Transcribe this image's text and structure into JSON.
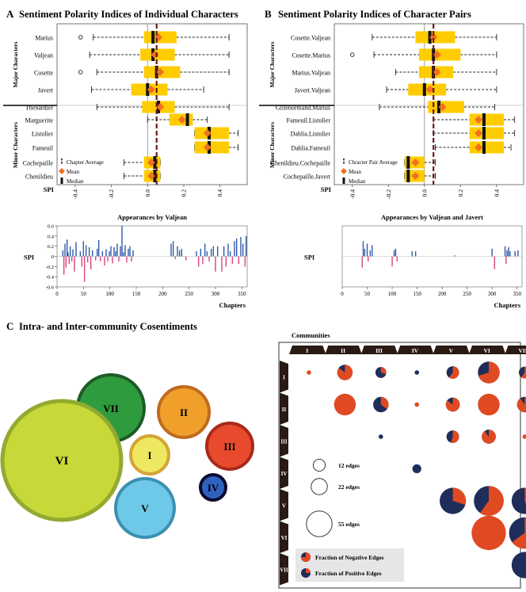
{
  "panels": {
    "a_letter": "A",
    "a_title": "Sentiment Polarity Indices of Individual Characters",
    "b_letter": "B",
    "b_title": "Sentiment Polarity Indices of Character Pairs",
    "c_letter": "C",
    "c_title": "Intra- and Inter-community Cosentiments"
  },
  "colors": {
    "box": "#FFCC00",
    "mean": "#F07020",
    "median": "#111111",
    "avgline": "#6B1A1A",
    "pos_bar": "#2E5BA8",
    "neg_bar": "#D6457A",
    "pie_neg": "#E04A22",
    "pie_pos": "#1F2D5A"
  },
  "chart_data": [
    {
      "id": "A-box",
      "type": "box",
      "xlabel": "SPI",
      "xlim": [
        -0.5,
        0.55
      ],
      "ticks": [
        "-0.4",
        "-0.2",
        "0.0",
        "0.2",
        "0.4"
      ],
      "group_labels": [
        "Major Characters",
        "Minor Characters"
      ],
      "legend": [
        "Chapter Average",
        "Mean",
        "Median"
      ],
      "chapter_average": 0.05,
      "rows": [
        {
          "label": "Marius",
          "group": 0,
          "wlo": -0.3,
          "q1": -0.02,
          "median": 0.03,
          "mean": 0.06,
          "q3": 0.16,
          "whi": 0.45,
          "outliers": [
            -0.37
          ]
        },
        {
          "label": "Valjean",
          "group": 0,
          "wlo": -0.32,
          "q1": -0.04,
          "median": 0.03,
          "mean": 0.04,
          "q3": 0.15,
          "whi": 0.45,
          "outliers": []
        },
        {
          "label": "Cosette",
          "group": 0,
          "wlo": -0.28,
          "q1": -0.02,
          "median": 0.05,
          "mean": 0.07,
          "q3": 0.18,
          "whi": 0.45,
          "outliers": [
            -0.37
          ]
        },
        {
          "label": "Javert",
          "group": 0,
          "wlo": -0.31,
          "q1": -0.09,
          "median": 0.0,
          "mean": 0.02,
          "q3": 0.11,
          "whi": 0.31,
          "outliers": []
        },
        {
          "label": "Thenardier",
          "group": 0,
          "wlo": -0.28,
          "q1": -0.03,
          "median": 0.06,
          "mean": 0.07,
          "q3": 0.15,
          "whi": 0.45,
          "outliers": []
        },
        {
          "label": "Marguerite",
          "group": 1,
          "wlo": 0.0,
          "q1": 0.12,
          "median": 0.22,
          "mean": 0.19,
          "q3": 0.25,
          "whi": 0.33,
          "outliers": []
        },
        {
          "label": "Listolier",
          "group": 1,
          "wlo": 0.26,
          "q1": 0.26,
          "median": 0.34,
          "mean": 0.33,
          "q3": 0.45,
          "whi": 0.5,
          "outliers": []
        },
        {
          "label": "Fameuil",
          "group": 1,
          "wlo": 0.26,
          "q1": 0.26,
          "median": 0.34,
          "mean": 0.33,
          "q3": 0.45,
          "whi": 0.5,
          "outliers": []
        },
        {
          "label": "Cochepaille",
          "group": 1,
          "wlo": -0.13,
          "q1": -0.02,
          "median": 0.04,
          "mean": 0.02,
          "q3": 0.07,
          "whi": 0.07,
          "outliers": []
        },
        {
          "label": "Chenildieu",
          "group": 1,
          "wlo": -0.13,
          "q1": -0.02,
          "median": 0.04,
          "mean": 0.02,
          "q3": 0.07,
          "whi": 0.07,
          "outliers": []
        }
      ]
    },
    {
      "id": "B-box",
      "type": "box",
      "xlabel": "SPI",
      "xlim": [
        -0.5,
        0.55
      ],
      "ticks": [
        "-0.4",
        "-0.2",
        "0.0",
        "0.2",
        "0.4"
      ],
      "group_labels": [
        "Major Characters",
        "Minor Characters"
      ],
      "legend": [
        "Chracter Pair Average",
        "Mean",
        "Median"
      ],
      "chapter_average": 0.05,
      "rows": [
        {
          "label": "Cosette.Valjean",
          "group": 0,
          "wlo": -0.29,
          "q1": -0.05,
          "median": 0.03,
          "mean": 0.05,
          "q3": 0.17,
          "whi": 0.4,
          "outliers": []
        },
        {
          "label": "Cosette.Marius",
          "group": 0,
          "wlo": -0.28,
          "q1": -0.03,
          "median": 0.05,
          "mean": 0.07,
          "q3": 0.2,
          "whi": 0.4,
          "outliers": [
            -0.4
          ]
        },
        {
          "label": "Marius.Valjean",
          "group": 0,
          "wlo": -0.16,
          "q1": -0.03,
          "median": 0.05,
          "mean": 0.07,
          "q3": 0.16,
          "whi": 0.4,
          "outliers": []
        },
        {
          "label": "Javert.Valjean",
          "group": 0,
          "wlo": -0.21,
          "q1": -0.09,
          "median": 0.0,
          "mean": 0.03,
          "q3": 0.12,
          "whi": 0.4,
          "outliers": []
        },
        {
          "label": "Gillenormand.Marius",
          "group": 0,
          "wlo": -0.25,
          "q1": 0.02,
          "median": 0.08,
          "mean": 0.1,
          "q3": 0.22,
          "whi": 0.39,
          "outliers": []
        },
        {
          "label": "Fameuil.Listolier",
          "group": 1,
          "wlo": 0.05,
          "q1": 0.25,
          "median": 0.33,
          "mean": 0.3,
          "q3": 0.44,
          "whi": 0.5,
          "outliers": []
        },
        {
          "label": "Dahlia.Listolier",
          "group": 1,
          "wlo": 0.05,
          "q1": 0.25,
          "median": 0.33,
          "mean": 0.3,
          "q3": 0.44,
          "whi": 0.5,
          "outliers": []
        },
        {
          "label": "Dahlia.Fameuil",
          "group": 1,
          "wlo": 0.06,
          "q1": 0.25,
          "median": 0.33,
          "mean": 0.3,
          "q3": 0.44,
          "whi": 0.48,
          "outliers": []
        },
        {
          "label": "Chenildieu.Cochepaille",
          "group": 1,
          "wlo": -0.11,
          "q1": -0.11,
          "median": -0.09,
          "mean": -0.05,
          "q3": 0.0,
          "whi": 0.06,
          "outliers": []
        },
        {
          "label": "Cochepaille.Javert",
          "group": 1,
          "wlo": -0.11,
          "q1": -0.11,
          "median": -0.09,
          "mean": -0.05,
          "q3": 0.0,
          "whi": 0.06,
          "outliers": []
        }
      ]
    },
    {
      "id": "A-bars",
      "type": "bar",
      "title": "Appearances by Valjean",
      "ylabel": "SPI",
      "xlabel": "Chapters",
      "xlim": [
        0,
        360
      ],
      "ylim": [
        -0.6,
        0.6
      ],
      "xticks": [
        0,
        50,
        100,
        150,
        200,
        250,
        300,
        350
      ],
      "yticks": [
        -0.6,
        -0.4,
        -0.2,
        0,
        0.2,
        0.4,
        0.6
      ],
      "x": [
        11,
        13,
        15,
        17,
        19,
        21,
        23,
        25,
        28,
        30,
        33,
        36,
        40,
        44,
        47,
        50,
        52,
        55,
        58,
        61,
        64,
        67,
        70,
        73,
        76,
        79,
        82,
        86,
        90,
        93,
        96,
        99,
        102,
        105,
        108,
        111,
        114,
        117,
        120,
        123,
        126,
        129,
        132,
        135,
        138,
        141,
        144,
        147,
        150,
        153,
        156,
        160,
        164,
        168,
        172,
        176,
        180,
        184,
        188,
        192,
        196,
        200,
        204,
        208,
        212,
        216,
        220,
        224,
        228,
        232,
        236,
        240,
        244,
        248,
        252,
        256,
        260,
        264,
        268,
        272,
        276,
        280,
        284,
        288,
        292,
        296,
        300,
        304,
        308,
        312,
        316,
        320,
        324,
        328,
        332,
        336,
        340,
        344,
        348,
        352,
        356,
        358
      ],
      "values": [
        0.12,
        -0.36,
        0.25,
        -0.22,
        0.33,
        0.08,
        -0.15,
        0.2,
        -0.1,
        0.14,
        -0.3,
        0.28,
        0.0,
        0.1,
        -0.2,
        0.3,
        -0.5,
        0.22,
        -0.12,
        0.18,
        -0.26,
        0.12,
        0.0,
        -0.08,
        0.15,
        0.32,
        -0.1,
        0.1,
        -0.18,
        0.14,
        -0.1,
        0.1,
        0.2,
        -0.14,
        0.18,
        0.1,
        0.25,
        -0.1,
        0.2,
        0.6,
        0.08,
        0.22,
        -0.12,
        0.15,
        0.2,
        -0.1,
        0.12,
        0.0,
        0.0,
        0.0,
        0.0,
        0.0,
        0.0,
        0.0,
        0.0,
        0.0,
        0.0,
        0.0,
        0.0,
        0.0,
        0.0,
        0.0,
        0.0,
        0.0,
        0.0,
        0.25,
        0.3,
        -0.05,
        0.2,
        0.12,
        0.15,
        0.0,
        -0.08,
        0.0,
        0.0,
        0.0,
        0.0,
        0.1,
        -0.2,
        0.15,
        -0.15,
        0.25,
        0.1,
        -0.1,
        0.15,
        0.2,
        -0.3,
        0.2,
        0.0,
        -0.3,
        0.2,
        -0.2,
        0.25,
        0.1,
        -0.15,
        0.3,
        0.35,
        -0.15,
        0.38,
        0.25,
        -0.2,
        0.4
      ]
    },
    {
      "id": "B-bars",
      "type": "bar",
      "title": "Appearances by Valjean and Javert",
      "ylabel": "SPI",
      "xlabel": "Chapters",
      "xlim": [
        0,
        360
      ],
      "ylim": [
        -0.6,
        0.6
      ],
      "xticks": [
        0,
        50,
        100,
        150,
        200,
        250,
        300,
        350
      ],
      "yticks": [
        -0.6,
        -0.4,
        -0.2,
        0,
        0.2,
        0.4,
        0.6
      ],
      "x": [
        40,
        42,
        45,
        50,
        52,
        56,
        60,
        100,
        104,
        107,
        110,
        140,
        147,
        225,
        300,
        305,
        326,
        328,
        330,
        333,
        336,
        346,
        352
      ],
      "values": [
        -0.22,
        0.3,
        0.15,
        0.25,
        -0.1,
        0.12,
        0.22,
        -0.2,
        0.12,
        0.15,
        -0.1,
        0.1,
        0.1,
        0.02,
        0.15,
        -0.25,
        0.2,
        -0.15,
        0.12,
        0.18,
        0.1,
        0.1,
        0.12
      ]
    },
    {
      "id": "C-bubbles",
      "type": "bubble",
      "nodes": [
        {
          "label": "VII",
          "size": 42,
          "fill": "#2E9B3E",
          "stroke": "#1E5B28"
        },
        {
          "label": "II",
          "size": 32,
          "fill": "#F0A02A",
          "stroke": "#C06A20"
        },
        {
          "label": "I",
          "size": 24,
          "fill": "#EEE860",
          "stroke": "#D4A436"
        },
        {
          "label": "III",
          "size": 29,
          "fill": "#E84A2E",
          "stroke": "#A82A18"
        },
        {
          "label": "VI",
          "size": 75,
          "fill": "#C8D838",
          "stroke": "#92AA30"
        },
        {
          "label": "IV",
          "size": 16,
          "fill": "#2F62BF",
          "stroke": "#0A0A30"
        },
        {
          "label": "V",
          "size": 37,
          "fill": "#6EC8E8",
          "stroke": "#3A90B0"
        }
      ]
    },
    {
      "id": "C-matrix",
      "type": "pie-matrix",
      "title": "Communities",
      "labels": [
        "I",
        "II",
        "III",
        "IV",
        "V",
        "VI",
        "VII"
      ],
      "size_legend": [
        "12 edges",
        "22 edges",
        "55 edges"
      ],
      "fraction_legend": [
        "Fraction of Negative Edges",
        "Fraction of Positive Edges"
      ],
      "cells": [
        {
          "row": 0,
          "col": 0,
          "edges": 1,
          "neg": 1.0
        },
        {
          "row": 0,
          "col": 1,
          "edges": 12,
          "neg": 0.85
        },
        {
          "row": 0,
          "col": 2,
          "edges": 6,
          "neg": 0.3
        },
        {
          "row": 0,
          "col": 3,
          "edges": 1,
          "neg": 0.0
        },
        {
          "row": 0,
          "col": 4,
          "edges": 8,
          "neg": 0.6
        },
        {
          "row": 0,
          "col": 5,
          "edges": 24,
          "neg": 0.7
        },
        {
          "row": 0,
          "col": 6,
          "edges": 7,
          "neg": 0.6
        },
        {
          "row": 1,
          "col": 1,
          "edges": 24,
          "neg": 1.0
        },
        {
          "row": 1,
          "col": 2,
          "edges": 12,
          "neg": 0.35
        },
        {
          "row": 1,
          "col": 3,
          "edges": 1,
          "neg": 1.0
        },
        {
          "row": 1,
          "col": 4,
          "edges": 10,
          "neg": 0.85
        },
        {
          "row": 1,
          "col": 5,
          "edges": 24,
          "neg": 1.0
        },
        {
          "row": 1,
          "col": 6,
          "edges": 12,
          "neg": 0.9
        },
        {
          "row": 2,
          "col": 2,
          "edges": 1,
          "neg": 0.0
        },
        {
          "row": 2,
          "col": 4,
          "edges": 8,
          "neg": 0.55
        },
        {
          "row": 2,
          "col": 5,
          "edges": 10,
          "neg": 0.9
        },
        {
          "row": 2,
          "col": 6,
          "edges": 1,
          "neg": 1.0
        },
        {
          "row": 3,
          "col": 3,
          "edges": 4,
          "neg": 0.0
        },
        {
          "row": 4,
          "col": 4,
          "edges": 35,
          "neg": 0.3
        },
        {
          "row": 4,
          "col": 5,
          "edges": 45,
          "neg": 0.6
        },
        {
          "row": 4,
          "col": 6,
          "edges": 35,
          "neg": 0.45
        },
        {
          "row": 5,
          "col": 5,
          "edges": 60,
          "neg": 1.0
        },
        {
          "row": 5,
          "col": 6,
          "edges": 50,
          "neg": 0.65
        },
        {
          "row": 6,
          "col": 6,
          "edges": 35,
          "neg": 0.0
        }
      ]
    }
  ]
}
